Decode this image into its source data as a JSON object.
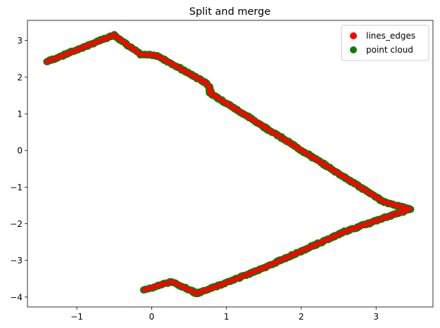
{
  "chart_data": {
    "type": "scatter",
    "title": "Split and merge",
    "xlabel": "",
    "ylabel": "",
    "xlim": [
      -1.66,
      3.76
    ],
    "ylim": [
      -4.27,
      3.55
    ],
    "xticks": [
      -1,
      0,
      1,
      2,
      3
    ],
    "xtick_labels": [
      "−1",
      "0",
      "1",
      "2",
      "3"
    ],
    "yticks": [
      -4,
      -3,
      -2,
      -1,
      0,
      1,
      2,
      3
    ],
    "ytick_labels": [
      "−4",
      "−3",
      "−2",
      "−1",
      "0",
      "1",
      "2",
      "3"
    ],
    "grid": false,
    "legend_position": "top-right",
    "series": [
      {
        "name": "lines_edges",
        "color": "#ff0000",
        "marker": "circle",
        "path": [
          [
            -1.4,
            2.42
          ],
          [
            -0.5,
            3.15
          ],
          [
            -0.15,
            2.62
          ],
          [
            0.05,
            2.6
          ],
          [
            0.15,
            2.5
          ],
          [
            0.72,
            1.85
          ],
          [
            0.78,
            1.72
          ],
          [
            0.78,
            1.57
          ],
          [
            3.1,
            -1.4
          ],
          [
            3.45,
            -1.6
          ],
          [
            2.6,
            -2.2
          ],
          [
            1.5,
            -3.2
          ],
          [
            0.95,
            -3.65
          ],
          [
            0.6,
            -3.9
          ],
          [
            0.27,
            -3.58
          ],
          [
            -0.1,
            -3.8
          ]
        ]
      },
      {
        "name": "point cloud",
        "color": "#008000",
        "marker": "circle",
        "path": [
          [
            -1.4,
            2.42
          ],
          [
            -0.5,
            3.15
          ],
          [
            -0.15,
            2.62
          ],
          [
            0.05,
            2.6
          ],
          [
            0.15,
            2.5
          ],
          [
            0.72,
            1.85
          ],
          [
            0.78,
            1.72
          ],
          [
            0.78,
            1.57
          ],
          [
            3.1,
            -1.4
          ],
          [
            3.45,
            -1.6
          ],
          [
            2.6,
            -2.2
          ],
          [
            1.5,
            -3.2
          ],
          [
            0.95,
            -3.65
          ],
          [
            0.6,
            -3.9
          ],
          [
            0.27,
            -3.58
          ],
          [
            -0.1,
            -3.8
          ]
        ]
      }
    ]
  }
}
